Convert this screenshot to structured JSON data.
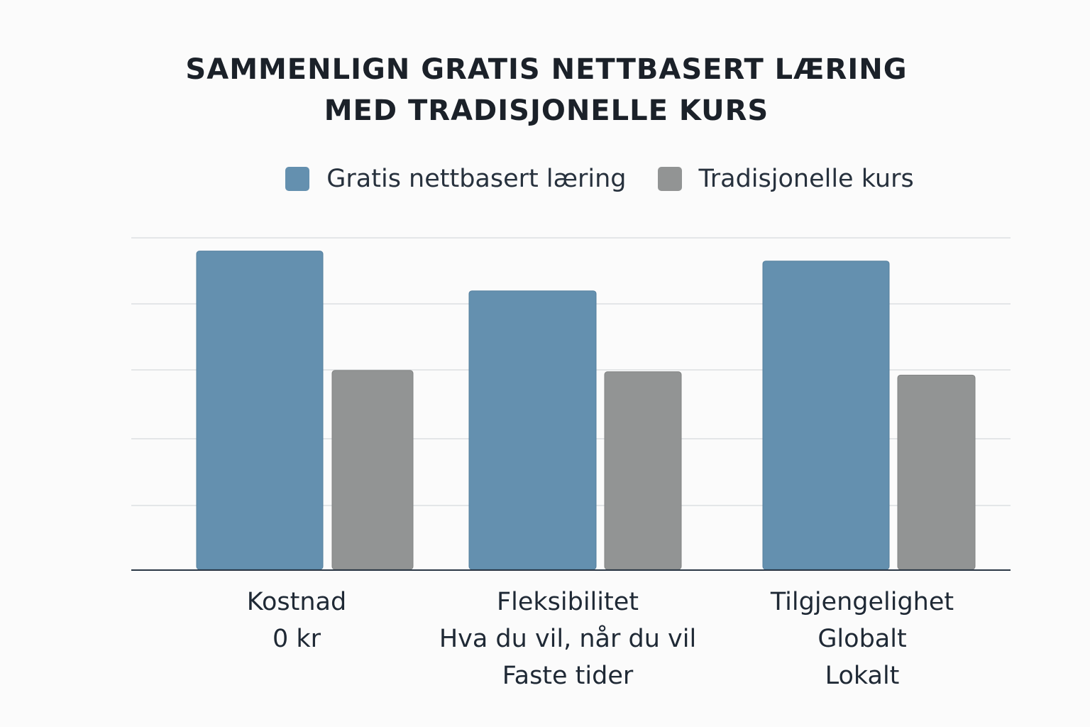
{
  "chart_data": {
    "type": "bar",
    "title_lines": [
      "SAMMENLIGN GRATIS NETTBASERT LÆRING",
      "MED TRADISJONELLE KURS"
    ],
    "categories": [
      "Kostnad",
      "Fleksibilitet",
      "Tilgjengelighet"
    ],
    "category_sublabels": [
      [
        "0 kr"
      ],
      [
        "Hva du vil, når du vil",
        "Faste tider"
      ],
      [
        "Globalt",
        "Lokalt"
      ]
    ],
    "series": [
      {
        "name": "Gratis nettbasert læring",
        "color": "#6490af",
        "values": [
          4.8,
          4.2,
          4.65
        ]
      },
      {
        "name": "Tradisjonelle kurs",
        "color": "#929494",
        "values": [
          3.0,
          2.98,
          2.93
        ]
      }
    ],
    "ylim": [
      0,
      5
    ],
    "grid": true,
    "legend_position": "top-center",
    "xlabel": "",
    "ylabel": ""
  }
}
